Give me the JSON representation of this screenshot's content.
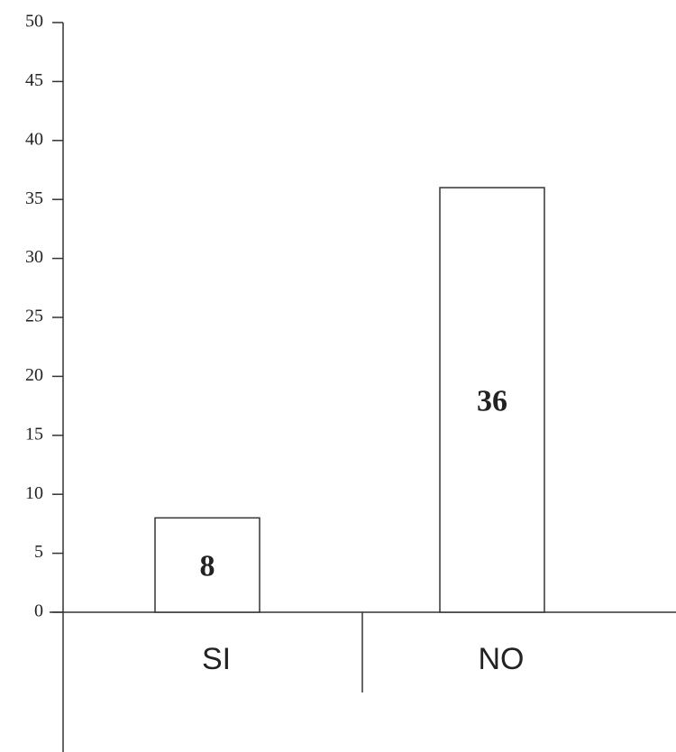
{
  "chart_data": {
    "type": "bar",
    "categories": [
      "SI",
      "NO"
    ],
    "values": [
      8,
      36
    ],
    "color": "#ffffff",
    "ylim": [
      0,
      50
    ],
    "yticks": [
      0,
      5,
      10,
      15,
      20,
      25,
      30,
      35,
      40,
      45,
      50
    ],
    "grid": false
  }
}
